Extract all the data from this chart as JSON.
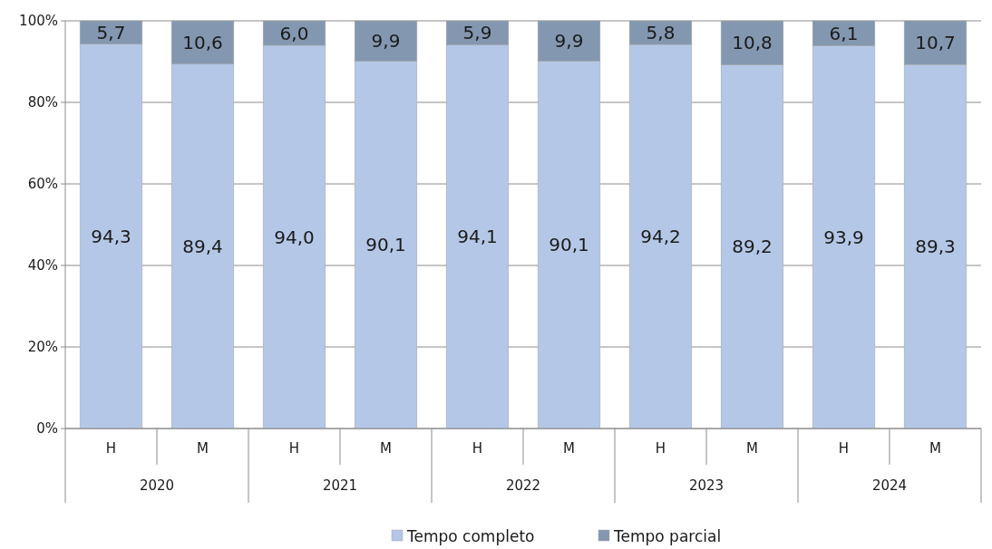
{
  "chart_data": {
    "type": "bar",
    "stacked": true,
    "categories": [
      "H",
      "M",
      "H",
      "M",
      "H",
      "M",
      "H",
      "M",
      "H",
      "M"
    ],
    "series": [
      {
        "name": "Tempo completo",
        "color": "#b4c7e7",
        "values": [
          94.3,
          89.4,
          94.0,
          90.1,
          94.1,
          90.1,
          94.2,
          89.2,
          93.9,
          89.3
        ],
        "value_labels": [
          "94,3",
          "89,4",
          "94,0",
          "90,1",
          "94,1",
          "90,1",
          "94,2",
          "89,2",
          "93,9",
          "89,3"
        ]
      },
      {
        "name": "Tempo parcial",
        "color": "#8497b0",
        "values": [
          5.7,
          10.6,
          6.0,
          9.9,
          5.9,
          9.9,
          5.8,
          10.8,
          6.1,
          10.7
        ],
        "value_labels": [
          "5,7",
          "10,6",
          "6,0",
          "9,9",
          "5,9",
          "9,9",
          "5,8",
          "10,8",
          "6,1",
          "10,7"
        ]
      }
    ],
    "ylim": [
      0,
      100
    ],
    "yticks": [
      {
        "value": 0,
        "label": "0%"
      },
      {
        "value": 20,
        "label": "20%"
      },
      {
        "value": 40,
        "label": "40%"
      },
      {
        "value": 60,
        "label": "60%"
      },
      {
        "value": 80,
        "label": "80%"
      },
      {
        "value": 100,
        "label": "100%"
      }
    ],
    "grid": "y",
    "legend": "bottom",
    "annotations": [
      "2020",
      "2021",
      "2022",
      "2023",
      "2024"
    ]
  }
}
